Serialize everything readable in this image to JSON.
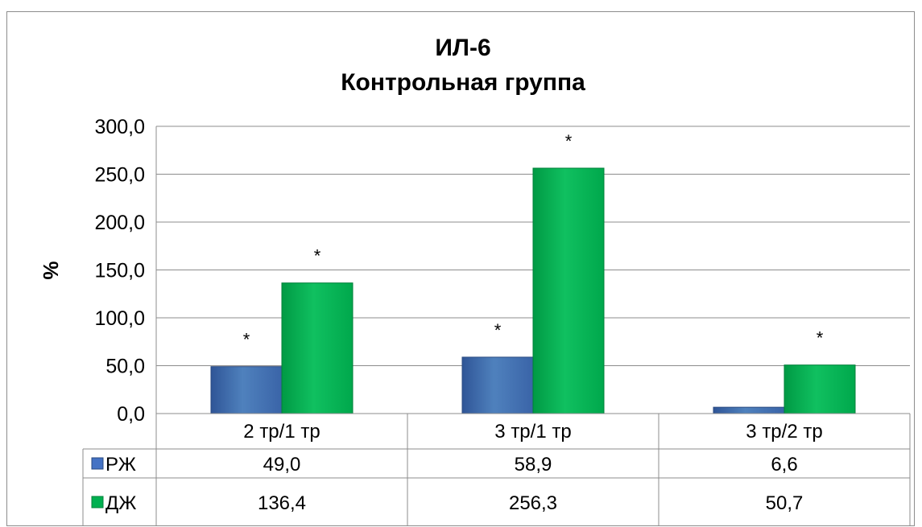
{
  "chart_data": {
    "type": "bar",
    "title_line1": "ИЛ-6",
    "title_line2": "Контрольная группа",
    "ylabel": "%",
    "ylim": [
      0,
      300
    ],
    "yticks": [
      "0,0",
      "50,0",
      "100,0",
      "150,0",
      "200,0",
      "250,0",
      "300,0"
    ],
    "categories": [
      "2 тр/1 тр",
      "3 тр/1 тр",
      "3 тр/2 тр"
    ],
    "series": [
      {
        "name": "РЖ",
        "values": [
          49.0,
          58.9,
          6.6
        ],
        "labels": [
          "49,0",
          "58,9",
          "6,6"
        ],
        "color": "#4472c4",
        "significant": [
          "*",
          "*",
          ""
        ]
      },
      {
        "name": "ДЖ",
        "values": [
          136.4,
          256.3,
          50.7
        ],
        "labels": [
          "136,4",
          "256,3",
          "50,7"
        ],
        "color": "#00b050",
        "significant": [
          "*",
          "*",
          "*"
        ]
      }
    ],
    "grid": true,
    "legend": "data-table"
  }
}
